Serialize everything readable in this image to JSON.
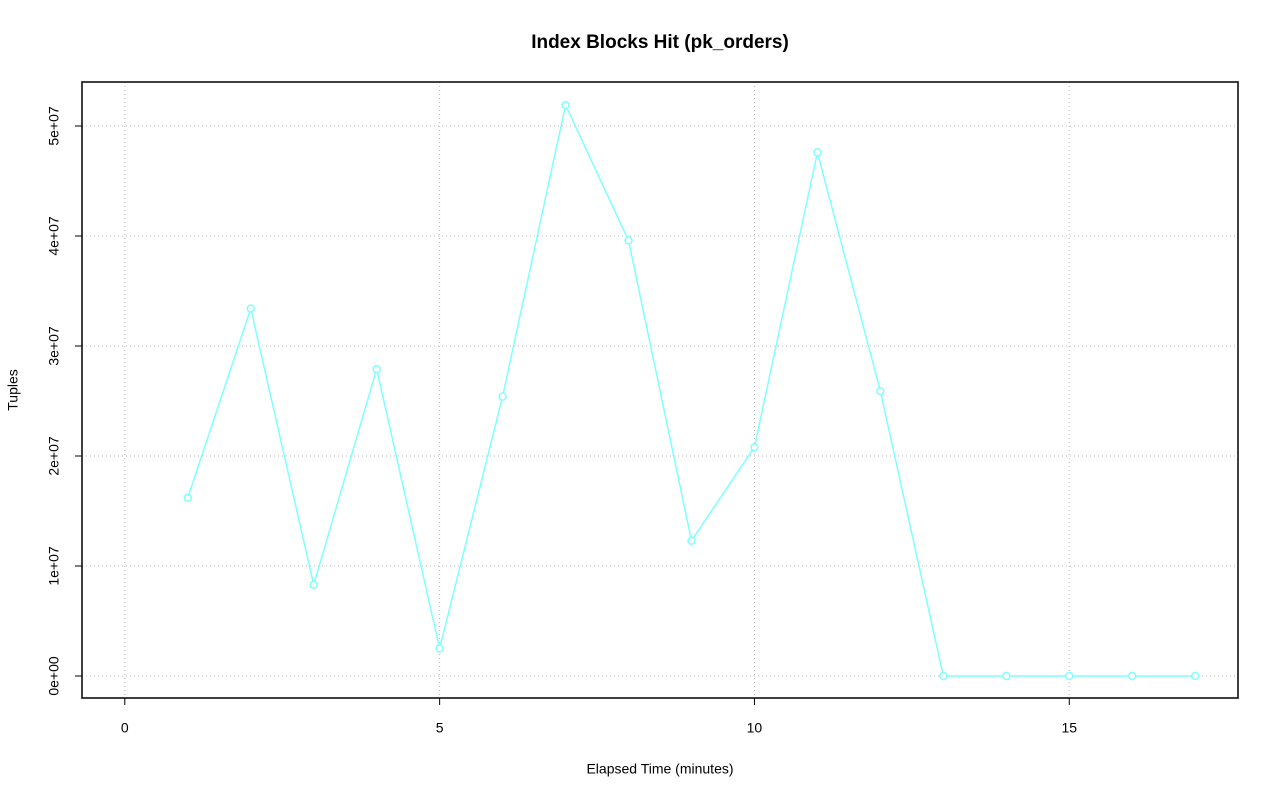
{
  "chart_data": {
    "type": "line",
    "title": "Index Blocks Hit (pk_orders)",
    "x_label": "Elapsed Time (minutes)",
    "y_label": "Tuples",
    "x": [
      1,
      2,
      3,
      4,
      5,
      6,
      7,
      8,
      9,
      10,
      11,
      12,
      13,
      14,
      15,
      16,
      17
    ],
    "series": [
      {
        "color": "#7fffff",
        "values": [
          16200000,
          33400000,
          8300000,
          27900000,
          2500000,
          25400000,
          51900000,
          39600000,
          12300000,
          20800000,
          47600000,
          25900000,
          0,
          0,
          0,
          0,
          0
        ]
      }
    ],
    "xlim": [
      -0.68,
      17.68
    ],
    "ylim": [
      -2000000,
      54000000
    ],
    "xticks": [
      0,
      5,
      10,
      15
    ],
    "yticks": [
      {
        "value": 0,
        "label": "0e+00"
      },
      {
        "value": 10000000,
        "label": "1e+07"
      },
      {
        "value": 20000000,
        "label": "2e+07"
      },
      {
        "value": 30000000,
        "label": "3e+07"
      },
      {
        "value": 40000000,
        "label": "4e+07"
      },
      {
        "value": 50000000,
        "label": "5e+07"
      }
    ],
    "grid": true
  }
}
